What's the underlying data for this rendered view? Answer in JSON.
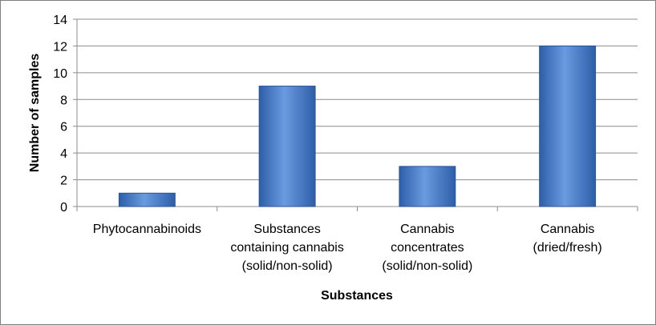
{
  "chart_data": {
    "type": "bar",
    "title": "",
    "xlabel": "Substances",
    "ylabel": "Number of samples",
    "ylim": [
      0,
      14
    ],
    "yticks": [
      "0",
      "2",
      "4",
      "6",
      "8",
      "10",
      "12",
      "14"
    ],
    "grid": true,
    "legend": "none",
    "categories": [
      [
        "Phytocannabinoids"
      ],
      [
        "Substances",
        "containing cannabis",
        "(solid/non-solid)"
      ],
      [
        "Cannabis",
        "concentrates",
        "(solid/non-solid)"
      ],
      [
        "Cannabis",
        "(dried/fresh)"
      ]
    ],
    "values": [
      1,
      9,
      3,
      12
    ],
    "colors": {
      "bar": "#3f77c9",
      "bar_dark": "#2d5ea8",
      "bar_light": "#6a9be0",
      "grid": "#8c8c8c"
    }
  }
}
